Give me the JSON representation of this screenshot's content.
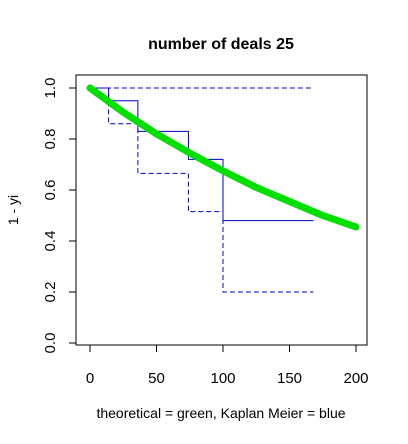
{
  "chart_data": {
    "type": "line",
    "title": "number of deals 25",
    "xlabel": "theoretical = green, Kaplan Meier = blue",
    "ylabel": "1 - yi",
    "xlim": [
      0,
      200
    ],
    "ylim": [
      0,
      1
    ],
    "x_ticks": [
      0,
      50,
      100,
      150,
      200
    ],
    "y_ticks": [
      0.0,
      0.2,
      0.4,
      0.6,
      0.8,
      1.0
    ],
    "x_tick_labels": [
      "0",
      "50",
      "100",
      "150",
      "200"
    ],
    "y_tick_labels": [
      "0.0",
      "0.2",
      "0.4",
      "0.6",
      "0.8",
      "1.0"
    ],
    "grid": false,
    "colors": {
      "theoretical": "#00e000",
      "kaplan_meier": "#0000cc",
      "axis": "#000000"
    },
    "series": [
      {
        "style": "thick-solid",
        "color": "#00e000",
        "x": [
          0,
          25,
          50,
          75,
          100,
          125,
          150,
          175,
          200
        ],
        "y": [
          1.0,
          0.905,
          0.82,
          0.745,
          0.675,
          0.61,
          0.555,
          0.5,
          0.455
        ]
      },
      {
        "style": "step-solid",
        "color": "#0000cc",
        "x": [
          0,
          14,
          36,
          74,
          100,
          168
        ],
        "y": [
          1.0,
          0.95,
          0.83,
          0.72,
          0.48,
          0.48
        ]
      },
      {
        "style": "step-dashed",
        "color": "#0000cc",
        "x": [
          0,
          14,
          36,
          74,
          100,
          168
        ],
        "y": [
          1.0,
          1.0,
          1.0,
          1.0,
          1.0,
          1.0
        ]
      },
      {
        "style": "step-dashed",
        "color": "#0000cc",
        "x": [
          0,
          14,
          36,
          74,
          100,
          168
        ],
        "y": [
          1.0,
          0.86,
          0.665,
          0.515,
          0.2,
          0.2
        ]
      }
    ]
  }
}
